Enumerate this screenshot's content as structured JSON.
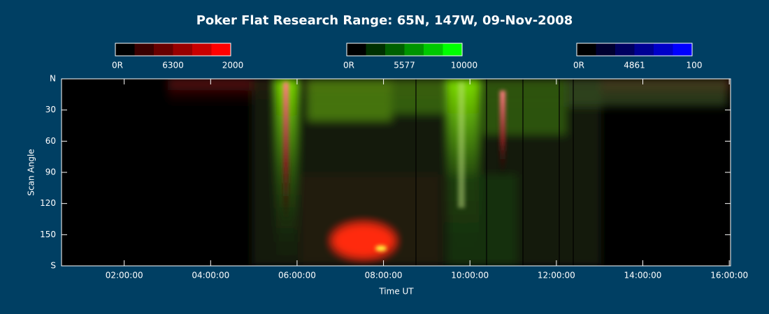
{
  "chart_data": {
    "type": "keogram",
    "title": "Poker Flat Research Range: 65N, 147W, 09-Nov-2008",
    "xlabel": "Time UT",
    "ylabel": "Scan Angle",
    "xlim": [
      0.55,
      16.03
    ],
    "xticks": [
      {
        "value": 2,
        "label": "02:00:00"
      },
      {
        "value": 4,
        "label": "04:00:00"
      },
      {
        "value": 6,
        "label": "06:00:00"
      },
      {
        "value": 8,
        "label": "08:00:00"
      },
      {
        "value": 10,
        "label": "10:00:00"
      },
      {
        "value": 12,
        "label": "12:00:00"
      },
      {
        "value": 14,
        "label": "14:00:00"
      },
      {
        "value": 16,
        "label": "16:00:00"
      }
    ],
    "ylim": [
      0,
      180
    ],
    "yticks": [
      {
        "value": 0,
        "label": "N"
      },
      30,
      60,
      90,
      120,
      150,
      {
        "value": 180,
        "label": "S"
      }
    ],
    "colorbars": [
      {
        "min_label": "0R",
        "name": "6300",
        "max_label": "2000",
        "colors": [
          "#000000",
          "#3a0000",
          "#680000",
          "#980000",
          "#c80000",
          "#ff0000"
        ]
      },
      {
        "min_label": "0R",
        "name": "5577",
        "max_label": "10000",
        "colors": [
          "#000000",
          "#003000",
          "#006000",
          "#009400",
          "#00c800",
          "#00ff00"
        ]
      },
      {
        "min_label": "0R",
        "name": "4861",
        "max_label": "100",
        "colors": [
          "#000000",
          "#000030",
          "#000060",
          "#000094",
          "#0000c8",
          "#0000ff"
        ]
      }
    ]
  }
}
